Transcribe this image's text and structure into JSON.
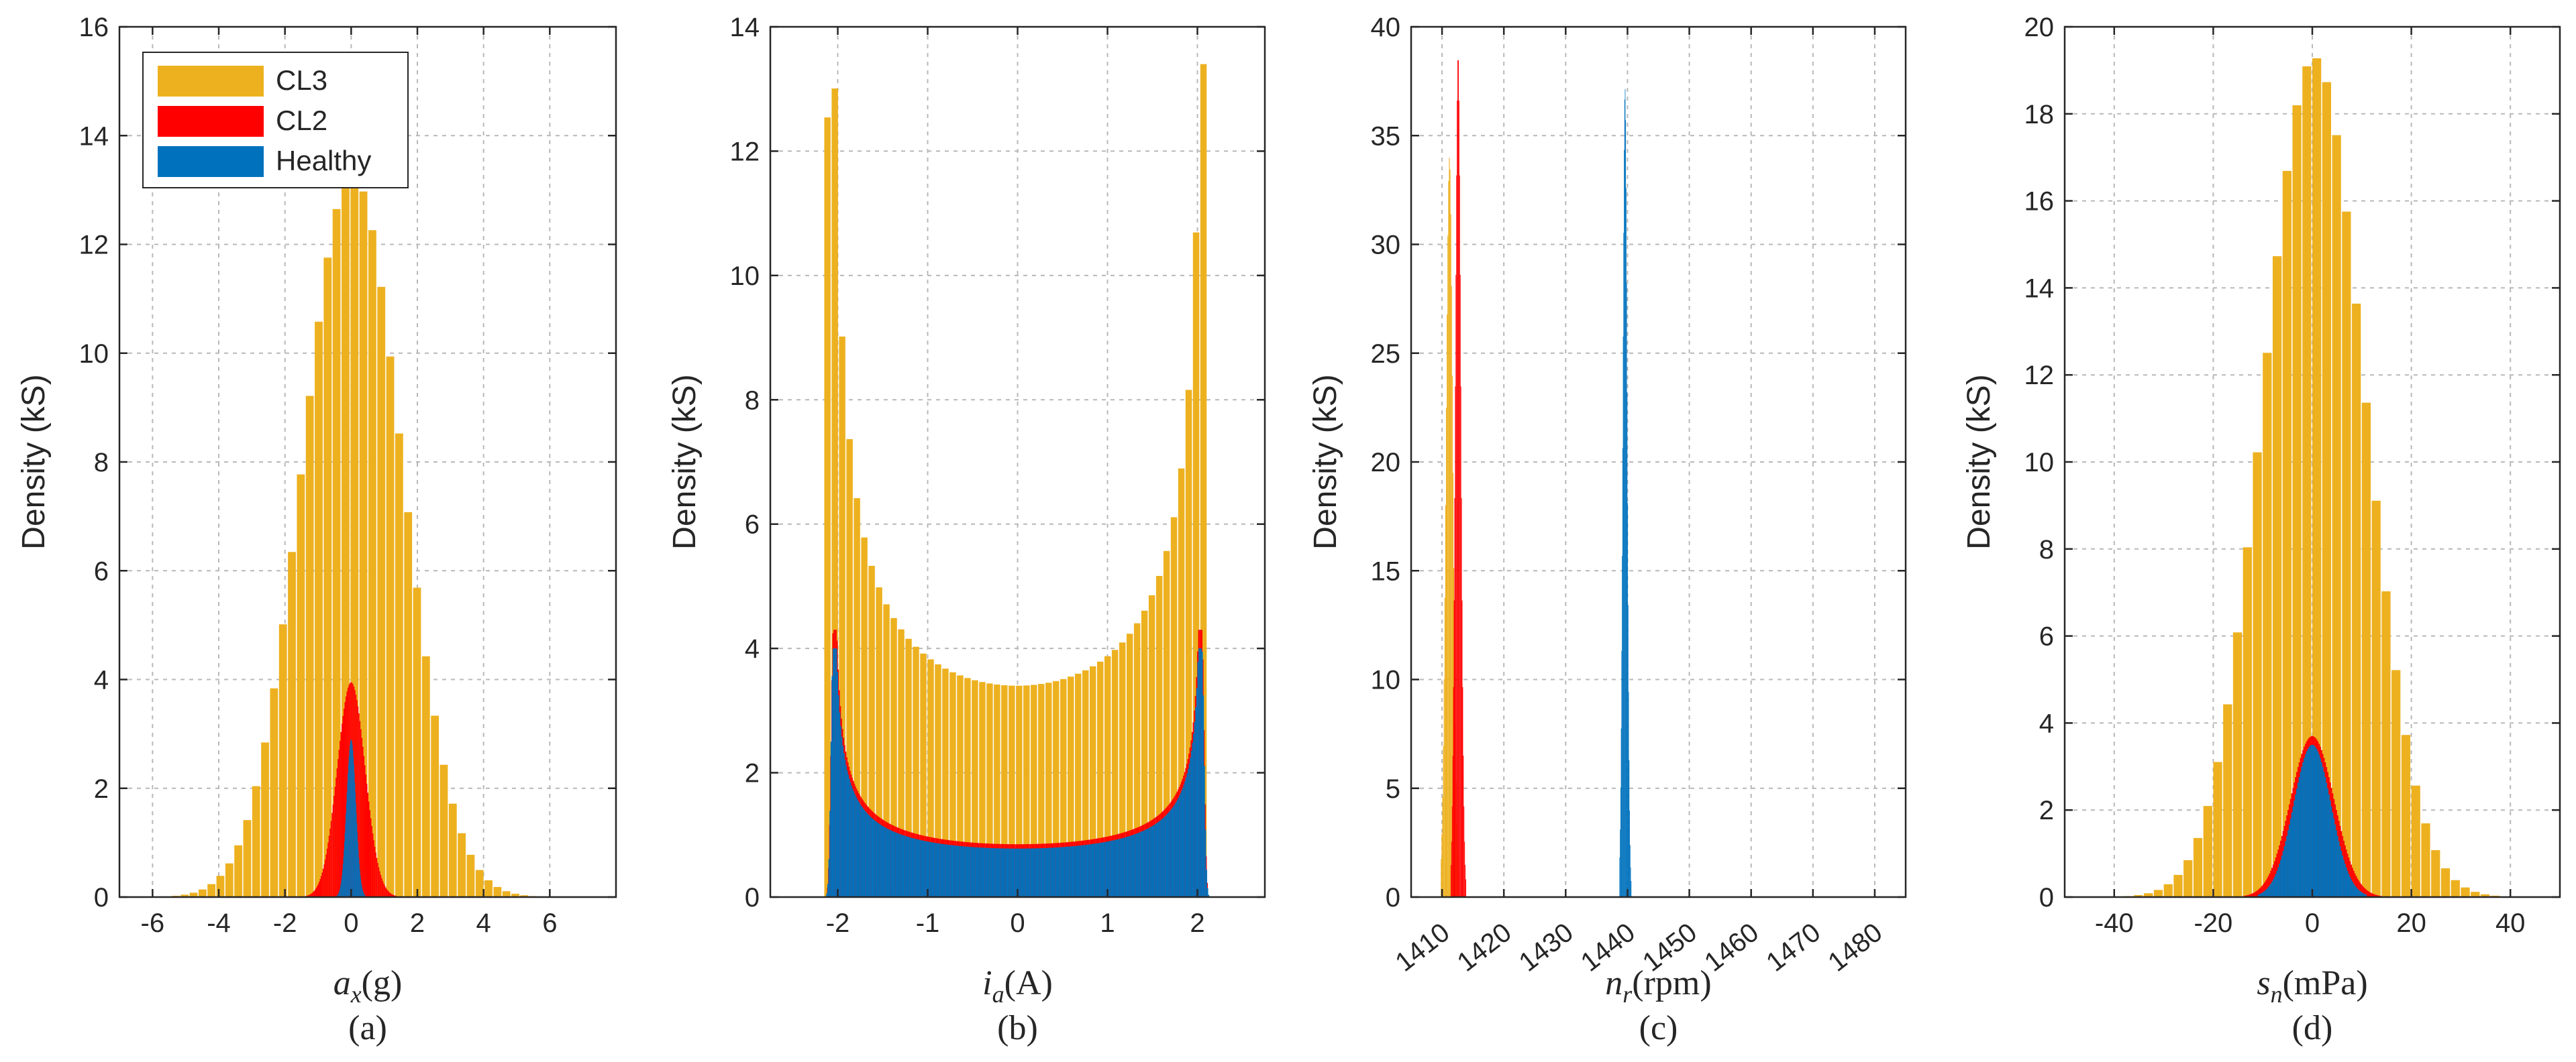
{
  "figure": {
    "legend": [
      {
        "label": "CL3",
        "color": "#EDB120"
      },
      {
        "label": "CL2",
        "color": "#FF0000"
      },
      {
        "label": "Healthy",
        "color": "#0072BD"
      }
    ]
  },
  "chart_data": [
    {
      "type": "bar",
      "subtitle": "(a)",
      "xlabel_sym": "a",
      "xlabel_sub": "x",
      "xlabel_unit": "(g)",
      "ylabel": "Density (kS)",
      "xlim": [
        -7,
        8
      ],
      "ylim": [
        0,
        16
      ],
      "xticks": [
        -6,
        -4,
        -2,
        0,
        2,
        4,
        6
      ],
      "yticks": [
        0,
        2,
        4,
        6,
        8,
        10,
        12,
        14,
        16
      ],
      "legend_position": "top-left",
      "series": [
        {
          "name": "CL3",
          "color": "#EDB120",
          "distribution": "normal",
          "mean": 0.05,
          "std": 1.5,
          "peak": 13.3,
          "range": [
            -6.5,
            6.8
          ],
          "bin_width": 0.27
        },
        {
          "name": "CL2",
          "color": "#FF0000",
          "distribution": "normal",
          "mean": 0.0,
          "std": 0.42,
          "peak": 3.95,
          "range": [
            -1.4,
            1.4
          ],
          "bin_width": 0.03
        },
        {
          "name": "Healthy",
          "color": "#0072BD",
          "distribution": "normal",
          "mean": 0.0,
          "std": 0.14,
          "peak": 2.9,
          "range": [
            -0.45,
            0.45
          ],
          "bin_width": 0.015
        }
      ]
    },
    {
      "type": "bar",
      "subtitle": "(b)",
      "xlabel_sym": "i",
      "xlabel_sub": "a",
      "xlabel_unit": "(A)",
      "ylabel": "Density (kS)",
      "xlim": [
        -2.75,
        2.75
      ],
      "ylim": [
        0,
        14
      ],
      "xticks": [
        -2,
        -1,
        0,
        1,
        2
      ],
      "yticks": [
        0,
        2,
        4,
        6,
        8,
        10,
        12,
        14
      ],
      "series": [
        {
          "name": "CL3",
          "color": "#EDB120",
          "distribution": "arcsine",
          "amplitude": 2.1,
          "floor": 3.4,
          "peak": 13.4,
          "range": [
            -2.15,
            2.15
          ],
          "bin_width": 0.082
        },
        {
          "name": "CL2",
          "color": "#FF0000",
          "distribution": "arcsine",
          "amplitude": 2.05,
          "floor": 0.85,
          "peak": 4.3,
          "range": [
            -2.12,
            2.12
          ],
          "bin_width": 0.012
        },
        {
          "name": "Healthy",
          "color": "#0072BD",
          "distribution": "arcsine",
          "amplitude": 2.05,
          "floor": 0.78,
          "peak": 4.0,
          "range": [
            -2.2,
            2.2
          ],
          "bin_width": 0.012
        }
      ]
    },
    {
      "type": "bar",
      "subtitle": "(c)",
      "xlabel_sym": "n",
      "xlabel_sub": "r",
      "xlabel_unit": "(rpm)",
      "ylabel": "Density (kS)",
      "xlim": [
        1405,
        1485
      ],
      "ylim": [
        0,
        40
      ],
      "xticks": [
        1410,
        1420,
        1430,
        1440,
        1450,
        1460,
        1470,
        1480
      ],
      "yticks": [
        0,
        5,
        10,
        15,
        20,
        25,
        30,
        35,
        40
      ],
      "series": [
        {
          "name": "CL3",
          "color": "#EDB120",
          "distribution": "normal",
          "mean": 1411.2,
          "std": 0.55,
          "peak": 34.0,
          "range": [
            1409.8,
            1412.7
          ],
          "bin_width": 0.12
        },
        {
          "name": "CL2",
          "color": "#FF0000",
          "distribution": "normal",
          "mean": 1412.6,
          "std": 0.45,
          "peak": 38.7,
          "range": [
            1411.4,
            1413.9
          ],
          "bin_width": 0.1
        },
        {
          "name": "Healthy",
          "color": "#0072BD",
          "distribution": "normal",
          "mean": 1439.6,
          "std": 0.35,
          "peak": 37.2,
          "range": [
            1438.7,
            1440.6
          ],
          "bin_width": 0.08
        }
      ]
    },
    {
      "type": "bar",
      "subtitle": "(d)",
      "xlabel_sym": "s",
      "xlabel_sub": "n",
      "xlabel_unit": "(mPa)",
      "ylabel": "Density (kS)",
      "xlim": [
        -50,
        50
      ],
      "ylim": [
        0,
        20
      ],
      "xticks": [
        -40,
        -20,
        0,
        20,
        40
      ],
      "yticks": [
        0,
        2,
        4,
        6,
        8,
        10,
        12,
        14,
        16,
        18,
        20
      ],
      "series": [
        {
          "name": "CL3",
          "color": "#EDB120",
          "distribution": "normal",
          "mean": 0.5,
          "std": 10.2,
          "peak": 19.3,
          "range": [
            -46,
            47
          ],
          "bin_width": 2.0
        },
        {
          "name": "CL2",
          "color": "#FF0000",
          "distribution": "normal",
          "mean": 0.0,
          "std": 4.4,
          "peak": 3.7,
          "range": [
            -14,
            14
          ],
          "bin_width": 0.25
        },
        {
          "name": "Healthy",
          "color": "#0072BD",
          "distribution": "normal",
          "mean": 0.0,
          "std": 3.8,
          "peak": 3.5,
          "range": [
            -11,
            11
          ],
          "bin_width": 0.25
        }
      ]
    }
  ]
}
